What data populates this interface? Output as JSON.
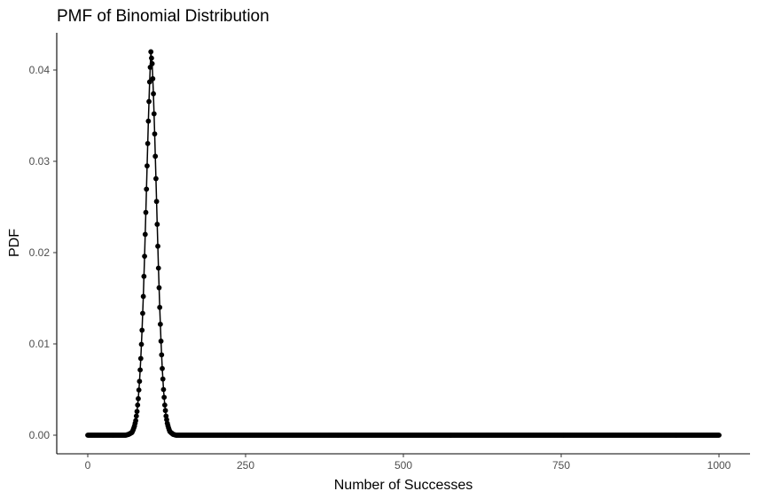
{
  "chart_data": {
    "type": "line",
    "title": "PMF of Binomial Distribution",
    "xlabel": "Number of Successes",
    "ylabel": "PDF",
    "xlim": [
      0,
      1000
    ],
    "ylim": [
      0,
      0.042
    ],
    "x_ticks": [
      0,
      250,
      500,
      750,
      1000
    ],
    "x_tick_labels": [
      "0",
      "250",
      "500",
      "750",
      "1000"
    ],
    "y_ticks": [
      0,
      0.01,
      0.02,
      0.03,
      0.04
    ],
    "y_tick_labels": [
      "0.00",
      "0.01",
      "0.02",
      "0.03",
      "0.04"
    ],
    "grid": false,
    "legend": "none",
    "markers": true,
    "colors": {
      "line": "#000000",
      "points": "#000000",
      "axis": "#000000",
      "tick_text": "#4d4d4d"
    },
    "series": [
      {
        "x_start": 0,
        "x_end": 1000,
        "x_step": 1,
        "points": [
          [
            0,
            0
          ],
          [
            40,
            0
          ],
          [
            60,
            0
          ],
          [
            65,
            0.0001
          ],
          [
            70,
            0.0003
          ],
          [
            72,
            0.0006
          ],
          [
            74,
            0.001
          ],
          [
            76,
            0.0016
          ],
          [
            78,
            0.0026
          ],
          [
            80,
            0.004
          ],
          [
            82,
            0.0059
          ],
          [
            84,
            0.0084
          ],
          [
            86,
            0.0115
          ],
          [
            88,
            0.0152
          ],
          [
            90,
            0.0196
          ],
          [
            92,
            0.0244
          ],
          [
            94,
            0.0295
          ],
          [
            96,
            0.0344
          ],
          [
            98,
            0.0387
          ],
          [
            99,
            0.0403
          ],
          [
            100,
            0.042
          ],
          [
            101,
            0.0413
          ],
          [
            102,
            0.0407
          ],
          [
            104,
            0.0374
          ],
          [
            106,
            0.033
          ],
          [
            108,
            0.0281
          ],
          [
            110,
            0.0231
          ],
          [
            112,
            0.0183
          ],
          [
            114,
            0.014
          ],
          [
            116,
            0.0103
          ],
          [
            118,
            0.0073
          ],
          [
            120,
            0.005
          ],
          [
            122,
            0.0033
          ],
          [
            124,
            0.0021
          ],
          [
            126,
            0.0013
          ],
          [
            128,
            0.0008
          ],
          [
            130,
            0.0004
          ],
          [
            135,
            0.0001
          ],
          [
            140,
            0
          ],
          [
            1000,
            0
          ]
        ]
      }
    ]
  }
}
